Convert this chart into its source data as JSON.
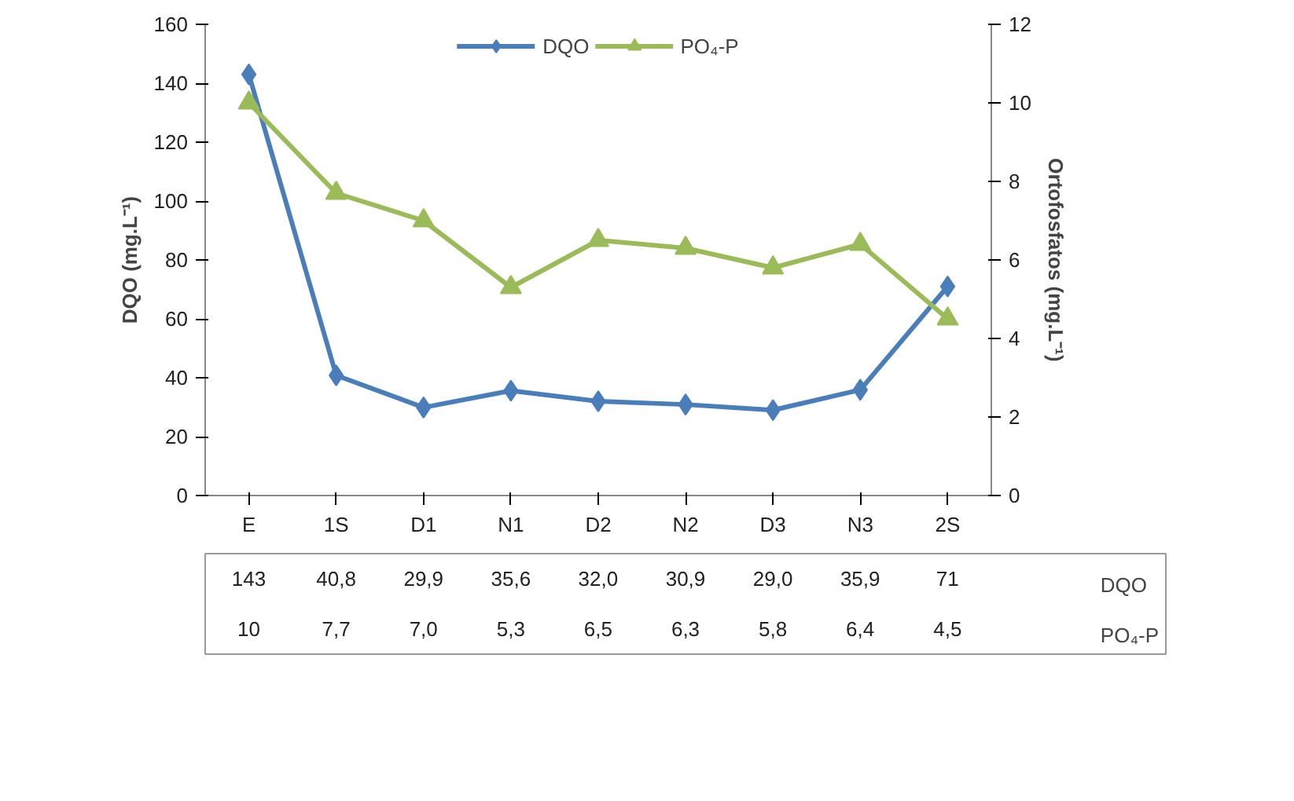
{
  "chart_data": {
    "type": "line",
    "categories": [
      "E",
      "1S",
      "D1",
      "N1",
      "D2",
      "N2",
      "D3",
      "N3",
      "2S"
    ],
    "series": [
      {
        "name": "DQO",
        "color": "#4a7ebb",
        "marker": "diamond",
        "values": [
          143,
          40.8,
          29.9,
          35.6,
          32.0,
          30.9,
          29.0,
          35.9,
          71
        ],
        "value_labels": [
          "143",
          "40,8",
          "29,9",
          "35,6",
          "32,0",
          "30,9",
          "29,0",
          "35,9",
          "71"
        ]
      },
      {
        "name": "PO₄-P",
        "color": "#9bbb59",
        "marker": "triangle",
        "axis": "y2",
        "values": [
          10,
          7.7,
          7.0,
          5.3,
          6.5,
          6.3,
          5.8,
          6.4,
          4.5
        ],
        "value_labels": [
          "10",
          "7,7",
          "7,0",
          "5,3",
          "6,5",
          "6,3",
          "5,8",
          "6,4",
          "4,5"
        ]
      }
    ],
    "ylabel": "DQO (mg.L⁻¹)",
    "y2label": "Ortofosfatos (mg.L⁻¹)",
    "ylim": [
      0,
      160
    ],
    "yticks": [
      0,
      20,
      40,
      60,
      80,
      100,
      120,
      140,
      160
    ],
    "y2lim": [
      0,
      12
    ],
    "y2ticks": [
      0,
      2,
      4,
      6,
      8,
      10,
      12
    ],
    "legend": "top",
    "grid": false
  }
}
